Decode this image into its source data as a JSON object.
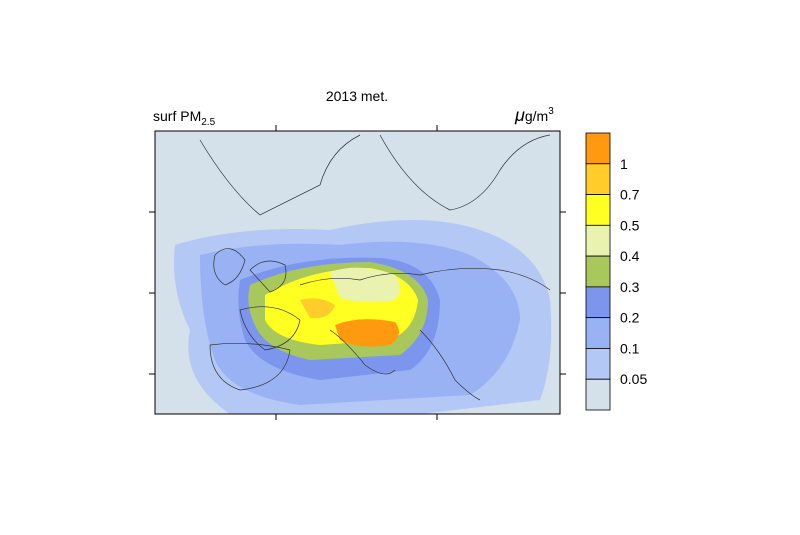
{
  "title": "2013 met.",
  "variable": {
    "name": "surf PM",
    "subscript": "2.5"
  },
  "units": {
    "symbol": "μ",
    "base": "g/m",
    "superscript": "3"
  },
  "colorbar": {
    "labels": [
      "1",
      "0.7",
      "0.5",
      "0.4",
      "0.3",
      "0.2",
      "0.1",
      "0.05"
    ],
    "colors": [
      "#ff9a10",
      "#ffcc2a",
      "#ffff22",
      "#eaf2b0",
      "#a9c85c",
      "#7c96ee",
      "#98b2f4",
      "#b4c8f6",
      "#d4e0ea"
    ]
  }
}
